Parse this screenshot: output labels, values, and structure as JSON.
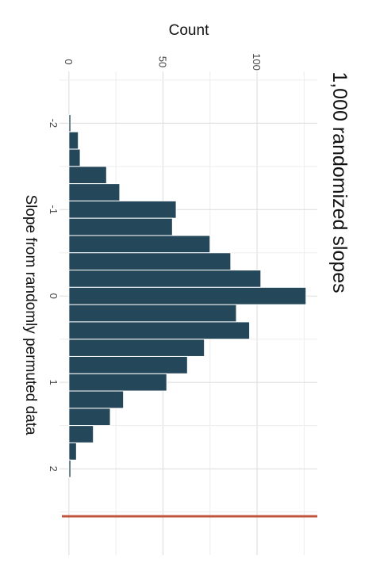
{
  "chart_data": {
    "type": "bar",
    "orientation": "rotated-90-clockwise",
    "title": "1,000 randomized slopes",
    "xlabel": "Slope from randomly permuted data",
    "ylabel": "Count",
    "x_ticks": [
      "-2",
      "-1",
      "0",
      "1",
      "2"
    ],
    "y_ticks": [
      "0",
      "50",
      "100"
    ],
    "xlim": [
      -2.6,
      3.0
    ],
    "ylim": [
      -5,
      132
    ],
    "grid": true,
    "bin_width": 0.2,
    "bin_centers": [
      -2.0,
      -1.8,
      -1.6,
      -1.4,
      -1.2,
      -1.0,
      -0.8,
      -0.6,
      -0.4,
      -0.2,
      0.0,
      0.2,
      0.4,
      0.6,
      0.8,
      1.0,
      1.2,
      1.4,
      1.6,
      1.8,
      2.0
    ],
    "values": [
      1,
      5,
      6,
      20,
      27,
      57,
      55,
      75,
      86,
      102,
      126,
      89,
      96,
      72,
      63,
      52,
      29,
      22,
      13,
      4,
      1
    ],
    "reference_line": {
      "x": 2.55,
      "color": "#c0553e"
    },
    "bar_color": "#24475a",
    "background": "#ffffff"
  }
}
